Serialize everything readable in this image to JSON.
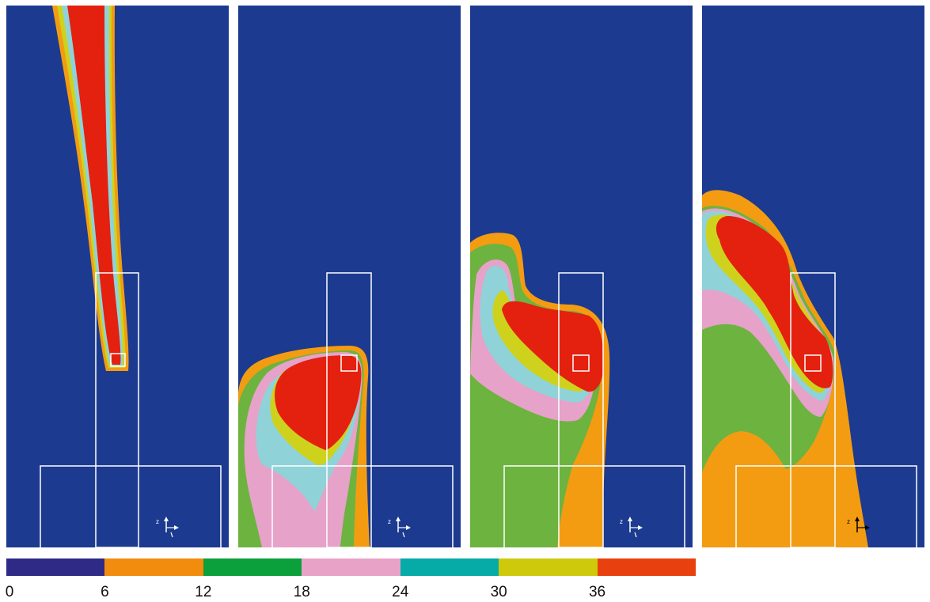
{
  "colors": {
    "background": "#1c3a8f",
    "level_6": "#f39c12",
    "level_12": "#6db33f",
    "level_18": "#e6a2c8",
    "level_24": "#8fd3d8",
    "level_30": "#cfd21c",
    "level_36": "#e4200f",
    "outline": "#ffffff",
    "axis_black": "#000000"
  },
  "colorbar": {
    "segment_colors": [
      "#2e2a85",
      "#f28c0f",
      "#0ba03c",
      "#e8a2c7",
      "#06aaa6",
      "#cfc90c",
      "#e8410f"
    ],
    "tick_labels": [
      "0",
      "6",
      "12",
      "18",
      "24",
      "30",
      "36"
    ]
  },
  "panels": [
    {
      "name": "panel-1",
      "axis_label": "z",
      "axis_color": "white"
    },
    {
      "name": "panel-2",
      "axis_label": "z",
      "axis_color": "white"
    },
    {
      "name": "panel-3",
      "axis_label": "z",
      "axis_color": "white"
    },
    {
      "name": "panel-4",
      "axis_label": "z",
      "axis_color": "black"
    }
  ]
}
